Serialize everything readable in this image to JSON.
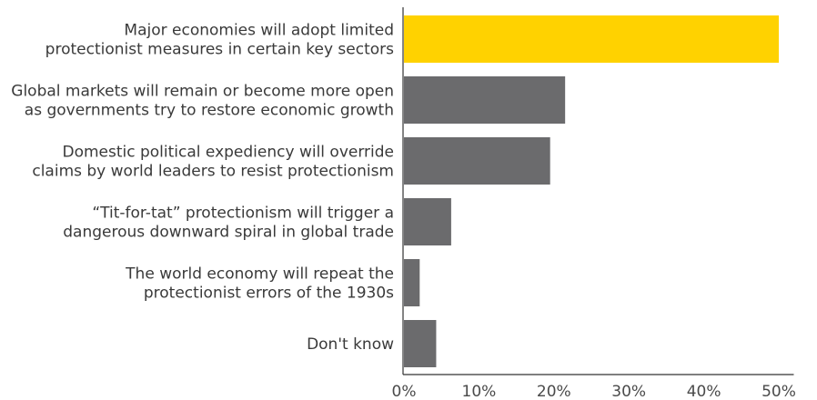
{
  "chart_data": {
    "type": "bar",
    "orientation": "horizontal",
    "categories": [
      [
        "Major economies will adopt limited",
        "protectionist measures in certain key sectors"
      ],
      [
        "Global markets will remain or become more open",
        "as governments try to restore economic growth"
      ],
      [
        "Domestic political expediency will override",
        "claims by world leaders to resist protectionism"
      ],
      [
        "“Tit-for-tat” protectionism will trigger a",
        "dangerous downward spiral in global trade"
      ],
      [
        "The world economy will repeat the",
        "protectionist errors of the 1930s"
      ],
      [
        "Don't know"
      ]
    ],
    "values": [
      50,
      21.5,
      19.5,
      6.3,
      2.1,
      4.3
    ],
    "unit": "%",
    "xlim": [
      0,
      52
    ],
    "xticks": [
      0,
      10,
      20,
      30,
      40,
      50
    ],
    "xtick_labels": [
      "0%",
      "10%",
      "20%",
      "30%",
      "40%",
      "50%"
    ],
    "title": "",
    "xlabel": "",
    "ylabel": "",
    "grid": false,
    "colors": {
      "highlight": "#ffd200",
      "default": "#6b6b6d"
    },
    "highlight_index": 0
  }
}
